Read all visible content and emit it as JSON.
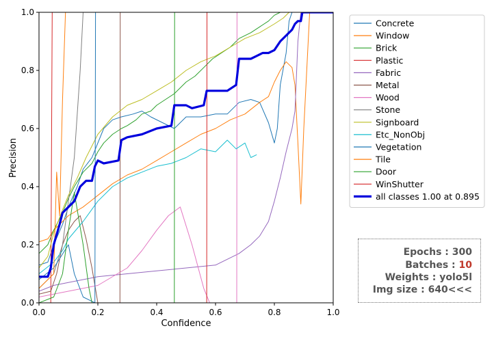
{
  "chart_data": {
    "type": "line",
    "xlabel": "Confidence",
    "ylabel": "Precision",
    "xlim": [
      0.0,
      1.0
    ],
    "ylim": [
      0.0,
      1.0
    ],
    "x_ticks": [
      "0.0",
      "0.2",
      "0.4",
      "0.6",
      "0.8",
      "1.0"
    ],
    "y_ticks": [
      "0.0",
      "0.2",
      "0.4",
      "0.6",
      "0.8",
      "1.0"
    ],
    "legend_position": "outside-right",
    "grid": false,
    "series": [
      {
        "name": "Concrete",
        "color": "#1f77b4",
        "points": [
          [
            0.0,
            0.13
          ],
          [
            0.03,
            0.14
          ],
          [
            0.05,
            0.2
          ],
          [
            0.08,
            0.27
          ],
          [
            0.1,
            0.33
          ],
          [
            0.13,
            0.4
          ],
          [
            0.15,
            0.46
          ],
          [
            0.18,
            0.5
          ],
          [
            0.2,
            0.55
          ],
          [
            0.22,
            0.6
          ],
          [
            0.25,
            0.63
          ],
          [
            0.28,
            0.64
          ],
          [
            0.32,
            0.65
          ],
          [
            0.35,
            0.66
          ],
          [
            0.38,
            0.64
          ],
          [
            0.42,
            0.62
          ],
          [
            0.46,
            0.6
          ],
          [
            0.5,
            0.64
          ],
          [
            0.55,
            0.64
          ],
          [
            0.6,
            0.65
          ],
          [
            0.64,
            0.65
          ],
          [
            0.68,
            0.69
          ],
          [
            0.72,
            0.7
          ],
          [
            0.75,
            0.69
          ],
          [
            0.78,
            0.62
          ],
          [
            0.8,
            0.55
          ],
          [
            0.81,
            0.6
          ],
          [
            0.82,
            0.75
          ],
          [
            0.84,
            0.86
          ],
          [
            0.85,
            0.97
          ],
          [
            0.86,
            1.0
          ]
        ]
      },
      {
        "name": "Window",
        "color": "#ff7f0e",
        "points": [
          [
            0.0,
            0.21
          ],
          [
            0.03,
            0.22
          ],
          [
            0.05,
            0.25
          ],
          [
            0.08,
            0.28
          ],
          [
            0.1,
            0.3
          ],
          [
            0.15,
            0.33
          ],
          [
            0.2,
            0.37
          ],
          [
            0.25,
            0.41
          ],
          [
            0.3,
            0.44
          ],
          [
            0.35,
            0.46
          ],
          [
            0.4,
            0.49
          ],
          [
            0.45,
            0.52
          ],
          [
            0.5,
            0.55
          ],
          [
            0.55,
            0.58
          ],
          [
            0.6,
            0.6
          ],
          [
            0.65,
            0.63
          ],
          [
            0.7,
            0.65
          ],
          [
            0.75,
            0.69
          ],
          [
            0.78,
            0.71
          ],
          [
            0.8,
            0.76
          ],
          [
            0.82,
            0.8
          ],
          [
            0.84,
            0.83
          ],
          [
            0.86,
            0.81
          ],
          [
            0.87,
            0.75
          ],
          [
            0.88,
            0.55
          ],
          [
            0.89,
            0.34
          ],
          [
            0.9,
            0.6
          ],
          [
            0.92,
            1.0
          ]
        ]
      },
      {
        "name": "Brick",
        "color": "#2ca02c",
        "points": [
          [
            0.0,
            0.17
          ],
          [
            0.03,
            0.2
          ],
          [
            0.05,
            0.25
          ],
          [
            0.08,
            0.31
          ],
          [
            0.1,
            0.36
          ],
          [
            0.12,
            0.4
          ],
          [
            0.15,
            0.45
          ],
          [
            0.18,
            0.48
          ],
          [
            0.2,
            0.52
          ],
          [
            0.22,
            0.55
          ],
          [
            0.25,
            0.58
          ],
          [
            0.28,
            0.6
          ],
          [
            0.3,
            0.61
          ],
          [
            0.33,
            0.63
          ],
          [
            0.35,
            0.65
          ],
          [
            0.38,
            0.66
          ],
          [
            0.4,
            0.68
          ],
          [
            0.43,
            0.7
          ],
          [
            0.46,
            0.72
          ],
          [
            0.5,
            0.76
          ],
          [
            0.53,
            0.78
          ],
          [
            0.56,
            0.81
          ],
          [
            0.59,
            0.84
          ],
          [
            0.62,
            0.86
          ],
          [
            0.65,
            0.88
          ],
          [
            0.68,
            0.91
          ],
          [
            0.72,
            0.93
          ],
          [
            0.75,
            0.95
          ],
          [
            0.78,
            0.97
          ],
          [
            0.8,
            0.99
          ],
          [
            0.82,
            1.0
          ]
        ]
      },
      {
        "name": "Plastic",
        "color": "#d62728",
        "points": [
          [
            0.0,
            0.0
          ],
          [
            0.04,
            0.0
          ],
          [
            0.045,
            1.0
          ]
        ]
      },
      {
        "name": "Fabric",
        "color": "#9467bd",
        "points": [
          [
            0.0,
            0.04
          ],
          [
            0.05,
            0.06
          ],
          [
            0.1,
            0.07
          ],
          [
            0.2,
            0.09
          ],
          [
            0.3,
            0.1
          ],
          [
            0.4,
            0.11
          ],
          [
            0.5,
            0.12
          ],
          [
            0.6,
            0.13
          ],
          [
            0.64,
            0.15
          ],
          [
            0.68,
            0.17
          ],
          [
            0.72,
            0.2
          ],
          [
            0.75,
            0.23
          ],
          [
            0.78,
            0.28
          ],
          [
            0.8,
            0.35
          ],
          [
            0.82,
            0.43
          ],
          [
            0.84,
            0.52
          ],
          [
            0.86,
            0.6
          ],
          [
            0.87,
            0.66
          ],
          [
            0.88,
            0.9
          ],
          [
            0.89,
            1.0
          ]
        ]
      },
      {
        "name": "Metal",
        "color": "#8c564b",
        "points": [
          [
            0.0,
            0.03
          ],
          [
            0.04,
            0.04
          ],
          [
            0.06,
            0.1
          ],
          [
            0.08,
            0.2
          ],
          [
            0.1,
            0.25
          ],
          [
            0.12,
            0.28
          ],
          [
            0.14,
            0.3
          ],
          [
            0.16,
            0.22
          ],
          [
            0.18,
            0.12
          ],
          [
            0.2,
            0.0
          ],
          [
            0.275,
            0.0
          ],
          [
            0.276,
            1.0
          ]
        ]
      },
      {
        "name": "Wood",
        "color": "#e377c2",
        "points": [
          [
            0.0,
            0.02
          ],
          [
            0.1,
            0.04
          ],
          [
            0.2,
            0.06
          ],
          [
            0.3,
            0.12
          ],
          [
            0.35,
            0.18
          ],
          [
            0.4,
            0.25
          ],
          [
            0.44,
            0.3
          ],
          [
            0.48,
            0.33
          ],
          [
            0.52,
            0.2
          ],
          [
            0.56,
            0.05
          ],
          [
            0.58,
            0.0
          ],
          [
            0.672,
            0.0
          ],
          [
            0.673,
            1.0
          ]
        ]
      },
      {
        "name": "Stone",
        "color": "#7f7f7f",
        "points": [
          [
            0.0,
            0.05
          ],
          [
            0.05,
            0.1
          ],
          [
            0.08,
            0.2
          ],
          [
            0.1,
            0.35
          ],
          [
            0.12,
            0.5
          ],
          [
            0.14,
            0.8
          ],
          [
            0.15,
            1.0
          ]
        ]
      },
      {
        "name": "Signboard",
        "color": "#bcbd22",
        "points": [
          [
            0.0,
            0.12
          ],
          [
            0.03,
            0.16
          ],
          [
            0.05,
            0.24
          ],
          [
            0.08,
            0.32
          ],
          [
            0.1,
            0.37
          ],
          [
            0.13,
            0.43
          ],
          [
            0.16,
            0.5
          ],
          [
            0.2,
            0.58
          ],
          [
            0.25,
            0.64
          ],
          [
            0.3,
            0.68
          ],
          [
            0.35,
            0.7
          ],
          [
            0.4,
            0.73
          ],
          [
            0.45,
            0.76
          ],
          [
            0.5,
            0.8
          ],
          [
            0.55,
            0.83
          ],
          [
            0.6,
            0.85
          ],
          [
            0.65,
            0.88
          ],
          [
            0.7,
            0.91
          ],
          [
            0.75,
            0.93
          ],
          [
            0.8,
            0.96
          ],
          [
            0.83,
            0.98
          ],
          [
            0.85,
            1.0
          ]
        ]
      },
      {
        "name": "Etc_NonObj",
        "color": "#17becf",
        "points": [
          [
            0.0,
            0.1
          ],
          [
            0.05,
            0.14
          ],
          [
            0.08,
            0.18
          ],
          [
            0.1,
            0.22
          ],
          [
            0.15,
            0.28
          ],
          [
            0.2,
            0.35
          ],
          [
            0.25,
            0.4
          ],
          [
            0.3,
            0.43
          ],
          [
            0.35,
            0.45
          ],
          [
            0.4,
            0.47
          ],
          [
            0.45,
            0.48
          ],
          [
            0.5,
            0.5
          ],
          [
            0.55,
            0.53
          ],
          [
            0.6,
            0.52
          ],
          [
            0.64,
            0.56
          ],
          [
            0.67,
            0.53
          ],
          [
            0.7,
            0.55
          ],
          [
            0.72,
            0.5
          ],
          [
            0.74,
            0.51
          ]
        ]
      },
      {
        "name": "Vegetation",
        "color": "#1f77b4",
        "points": [
          [
            0.0,
            0.08
          ],
          [
            0.05,
            0.12
          ],
          [
            0.1,
            0.2
          ],
          [
            0.12,
            0.1
          ],
          [
            0.15,
            0.02
          ],
          [
            0.19,
            0.0
          ],
          [
            0.192,
            1.0
          ]
        ]
      },
      {
        "name": "Tile",
        "color": "#ff7f0e",
        "points": [
          [
            0.0,
            0.05
          ],
          [
            0.05,
            0.1
          ],
          [
            0.06,
            0.45
          ],
          [
            0.07,
            0.3
          ],
          [
            0.08,
            0.7
          ],
          [
            0.09,
            1.0
          ]
        ]
      },
      {
        "name": "Door",
        "color": "#2ca02c",
        "points": [
          [
            0.0,
            0.0
          ],
          [
            0.05,
            0.02
          ],
          [
            0.08,
            0.1
          ],
          [
            0.1,
            0.25
          ],
          [
            0.12,
            0.38
          ],
          [
            0.15,
            0.2
          ],
          [
            0.17,
            0.05
          ],
          [
            0.18,
            0.0
          ],
          [
            0.46,
            0.0
          ],
          [
            0.461,
            1.0
          ]
        ]
      },
      {
        "name": "WinShutter",
        "color": "#d62728",
        "points": [
          [
            0.0,
            0.0
          ],
          [
            0.57,
            0.0
          ],
          [
            0.571,
            1.0
          ]
        ]
      },
      {
        "name": "all classes 1.00 at 0.895",
        "color": "#0000dd",
        "bold": true,
        "points": [
          [
            0.0,
            0.09
          ],
          [
            0.03,
            0.09
          ],
          [
            0.04,
            0.12
          ],
          [
            0.05,
            0.2
          ],
          [
            0.07,
            0.27
          ],
          [
            0.08,
            0.31
          ],
          [
            0.1,
            0.33
          ],
          [
            0.12,
            0.35
          ],
          [
            0.14,
            0.4
          ],
          [
            0.16,
            0.42
          ],
          [
            0.18,
            0.42
          ],
          [
            0.19,
            0.47
          ],
          [
            0.2,
            0.49
          ],
          [
            0.22,
            0.48
          ],
          [
            0.27,
            0.49
          ],
          [
            0.28,
            0.56
          ],
          [
            0.3,
            0.57
          ],
          [
            0.35,
            0.58
          ],
          [
            0.4,
            0.6
          ],
          [
            0.45,
            0.61
          ],
          [
            0.46,
            0.68
          ],
          [
            0.5,
            0.68
          ],
          [
            0.52,
            0.67
          ],
          [
            0.56,
            0.68
          ],
          [
            0.57,
            0.73
          ],
          [
            0.6,
            0.73
          ],
          [
            0.64,
            0.73
          ],
          [
            0.67,
            0.75
          ],
          [
            0.68,
            0.84
          ],
          [
            0.72,
            0.84
          ],
          [
            0.74,
            0.85
          ],
          [
            0.76,
            0.86
          ],
          [
            0.78,
            0.86
          ],
          [
            0.8,
            0.87
          ],
          [
            0.82,
            0.9
          ],
          [
            0.84,
            0.92
          ],
          [
            0.86,
            0.94
          ],
          [
            0.87,
            0.96
          ],
          [
            0.88,
            0.97
          ],
          [
            0.89,
            0.97
          ],
          [
            0.895,
            1.0
          ],
          [
            1.0,
            1.0
          ]
        ]
      }
    ]
  },
  "info_box": {
    "epochs_label": "Epochs",
    "epochs_value": "300",
    "batches_label": "Batches",
    "batches_value": "10",
    "weights_label": "Weights",
    "weights_value": "yolo5l",
    "imgsize_label": "Img size",
    "imgsize_value": "640<<<"
  }
}
